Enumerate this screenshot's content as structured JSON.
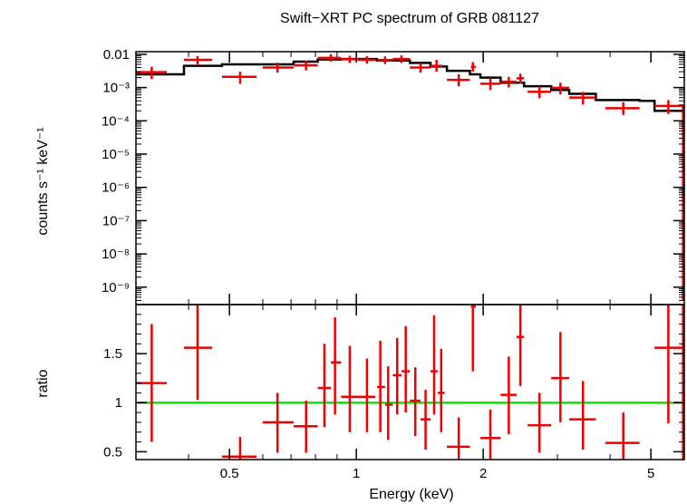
{
  "chart_data": [
    {
      "type": "scatter",
      "title": "Swift−XRT PC spectrum of GRB 081127",
      "ylabel": "counts s⁻¹ keV⁻¹",
      "y_scale": "log",
      "x_scale": "log",
      "xlim": [
        0.3,
        6.0
      ],
      "ylim": [
        3e-10,
        0.012
      ],
      "y_tick_labels": [
        "0.01",
        "10⁻³",
        "10⁻⁴",
        "10⁻⁵",
        "10⁻⁶",
        "10⁻⁷",
        "10⁻⁸",
        "10⁻⁹"
      ],
      "data_color": "#ee0000",
      "model_color": "#000000",
      "series": [
        {
          "role": "data",
          "points": [
            {
              "x": 0.327,
              "xlo": 0.3,
              "xhi": 0.355,
              "y": 0.0029,
              "ylo": 0.0018,
              "yhi": 0.0042
            },
            {
              "x": 0.42,
              "xlo": 0.39,
              "xhi": 0.455,
              "y": 0.0068,
              "ylo": 0.005,
              "yhi": 0.0088
            },
            {
              "x": 0.53,
              "xlo": 0.48,
              "xhi": 0.58,
              "y": 0.0021,
              "ylo": 0.0013,
              "yhi": 0.003
            },
            {
              "x": 0.65,
              "xlo": 0.6,
              "xhi": 0.71,
              "y": 0.004,
              "ylo": 0.0028,
              "yhi": 0.0056
            },
            {
              "x": 0.76,
              "xlo": 0.71,
              "xhi": 0.81,
              "y": 0.0047,
              "ylo": 0.0033,
              "yhi": 0.0064
            },
            {
              "x": 0.87,
              "xlo": 0.81,
              "xhi": 0.92,
              "y": 0.0078,
              "ylo": 0.006,
              "yhi": 0.01
            },
            {
              "x": 0.965,
              "xlo": 0.92,
              "xhi": 1.01,
              "y": 0.0071,
              "ylo": 0.0055,
              "yhi": 0.009
            },
            {
              "x": 1.06,
              "xlo": 1.01,
              "xhi": 1.11,
              "y": 0.0068,
              "ylo": 0.0052,
              "yhi": 0.0088
            },
            {
              "x": 1.17,
              "xlo": 1.12,
              "xhi": 1.22,
              "y": 0.0067,
              "ylo": 0.0051,
              "yhi": 0.0087
            },
            {
              "x": 1.28,
              "xlo": 1.22,
              "xhi": 1.34,
              "y": 0.0072,
              "ylo": 0.0055,
              "yhi": 0.0093
            },
            {
              "x": 1.42,
              "xlo": 1.34,
              "xhi": 1.5,
              "y": 0.004,
              "ylo": 0.0028,
              "yhi": 0.0055
            },
            {
              "x": 1.55,
              "xlo": 1.5,
              "xhi": 1.6,
              "y": 0.0045,
              "ylo": 0.003,
              "yhi": 0.0068
            },
            {
              "x": 1.75,
              "xlo": 1.64,
              "xhi": 1.86,
              "y": 0.0017,
              "ylo": 0.0011,
              "yhi": 0.0025
            },
            {
              "x": 1.89,
              "xlo": 1.87,
              "xhi": 1.92,
              "y": 0.0042,
              "ylo": 0.003,
              "yhi": 0.0058
            },
            {
              "x": 2.08,
              "xlo": 1.97,
              "xhi": 2.2,
              "y": 0.0013,
              "ylo": 0.00085,
              "yhi": 0.0019
            },
            {
              "x": 2.3,
              "xlo": 2.2,
              "xhi": 2.4,
              "y": 0.0015,
              "ylo": 0.001,
              "yhi": 0.0021
            },
            {
              "x": 2.45,
              "xlo": 2.4,
              "xhi": 2.5,
              "y": 0.0019,
              "ylo": 0.0013,
              "yhi": 0.0026
            },
            {
              "x": 2.72,
              "xlo": 2.55,
              "xhi": 2.9,
              "y": 0.00075,
              "ylo": 0.00048,
              "yhi": 0.0011
            },
            {
              "x": 3.05,
              "xlo": 2.9,
              "xhi": 3.2,
              "y": 0.00098,
              "ylo": 0.00062,
              "yhi": 0.0014
            },
            {
              "x": 3.45,
              "xlo": 3.2,
              "xhi": 3.7,
              "y": 0.0005,
              "ylo": 0.00031,
              "yhi": 0.00074
            },
            {
              "x": 4.3,
              "xlo": 3.9,
              "xhi": 4.7,
              "y": 0.00024,
              "ylo": 0.00015,
              "yhi": 0.00036
            },
            {
              "x": 5.5,
              "xlo": 5.1,
              "xhi": 5.95,
              "y": 0.00028,
              "ylo": 0.00016,
              "yhi": 0.00042
            },
            {
              "x": 5.96,
              "xlo": 5.92,
              "xhi": 6.0,
              "y": 0.00018,
              "ylo": 4e-10,
              "yhi": 0.0003
            }
          ]
        },
        {
          "role": "model",
          "steps": [
            {
              "x0": 0.3,
              "x1": 0.39,
              "y": 0.0025
            },
            {
              "x0": 0.39,
              "x1": 0.48,
              "y": 0.0045
            },
            {
              "x0": 0.48,
              "x1": 0.6,
              "y": 0.005
            },
            {
              "x0": 0.6,
              "x1": 0.71,
              "y": 0.005
            },
            {
              "x0": 0.71,
              "x1": 0.81,
              "y": 0.006
            },
            {
              "x0": 0.81,
              "x1": 0.92,
              "y": 0.007
            },
            {
              "x0": 0.92,
              "x1": 1.12,
              "y": 0.0072
            },
            {
              "x0": 1.12,
              "x1": 1.34,
              "y": 0.0065
            },
            {
              "x0": 1.34,
              "x1": 1.5,
              "y": 0.0055
            },
            {
              "x0": 1.5,
              "x1": 1.64,
              "y": 0.0043
            },
            {
              "x0": 1.64,
              "x1": 1.86,
              "y": 0.0032
            },
            {
              "x0": 1.86,
              "x1": 1.97,
              "y": 0.0025
            },
            {
              "x0": 1.97,
              "x1": 2.2,
              "y": 0.002
            },
            {
              "x0": 2.2,
              "x1": 2.5,
              "y": 0.0014
            },
            {
              "x0": 2.5,
              "x1": 2.9,
              "y": 0.0011
            },
            {
              "x0": 2.9,
              "x1": 3.2,
              "y": 0.00085
            },
            {
              "x0": 3.2,
              "x1": 3.7,
              "y": 0.00065
            },
            {
              "x0": 3.7,
              "x1": 4.7,
              "y": 0.00042
            },
            {
              "x0": 4.7,
              "x1": 5.1,
              "y": 0.0004
            },
            {
              "x0": 5.1,
              "x1": 6.0,
              "y": 0.0002
            }
          ]
        }
      ]
    },
    {
      "type": "scatter",
      "xlabel": "Energy (keV)",
      "ylabel": "ratio",
      "x_scale": "log",
      "xlim": [
        0.3,
        6.0
      ],
      "ylim": [
        0.42,
        2.0
      ],
      "x_tick_labels": [
        "0.5",
        "1",
        "2",
        "5"
      ],
      "y_tick_labels": [
        "0.5",
        "1",
        "1.5"
      ],
      "data_color": "#ee0000",
      "reference_line": {
        "y": 1,
        "color": "#00ee00"
      },
      "series": [
        {
          "role": "data",
          "points": [
            {
              "x": 0.327,
              "xlo": 0.3,
              "xhi": 0.355,
              "y": 1.2,
              "ylo": 0.6,
              "yhi": 1.8
            },
            {
              "x": 0.42,
              "xlo": 0.39,
              "xhi": 0.455,
              "y": 1.56,
              "ylo": 1.03,
              "yhi": 2.0
            },
            {
              "x": 0.53,
              "xlo": 0.48,
              "xhi": 0.58,
              "y": 0.45,
              "ylo": 0.42,
              "yhi": 0.65
            },
            {
              "x": 0.65,
              "xlo": 0.6,
              "xhi": 0.71,
              "y": 0.8,
              "ylo": 0.49,
              "yhi": 1.1
            },
            {
              "x": 0.76,
              "xlo": 0.71,
              "xhi": 0.81,
              "y": 0.76,
              "ylo": 0.49,
              "yhi": 1.02
            },
            {
              "x": 0.84,
              "xlo": 0.81,
              "xhi": 0.87,
              "y": 1.15,
              "ylo": 0.75,
              "yhi": 1.6
            },
            {
              "x": 0.89,
              "xlo": 0.87,
              "xhi": 0.92,
              "y": 1.41,
              "ylo": 0.88,
              "yhi": 1.87
            },
            {
              "x": 0.965,
              "xlo": 0.92,
              "xhi": 1.01,
              "y": 1.06,
              "ylo": 0.7,
              "yhi": 1.58
            },
            {
              "x": 1.06,
              "xlo": 1.01,
              "xhi": 1.11,
              "y": 1.06,
              "ylo": 0.7,
              "yhi": 1.45
            },
            {
              "x": 1.14,
              "xlo": 1.12,
              "xhi": 1.17,
              "y": 1.16,
              "ylo": 0.7,
              "yhi": 1.63
            },
            {
              "x": 1.19,
              "xlo": 1.17,
              "xhi": 1.22,
              "y": 0.98,
              "ylo": 0.62,
              "yhi": 1.37
            },
            {
              "x": 1.25,
              "xlo": 1.22,
              "xhi": 1.28,
              "y": 1.28,
              "ylo": 0.88,
              "yhi": 1.66
            },
            {
              "x": 1.31,
              "xlo": 1.28,
              "xhi": 1.34,
              "y": 1.32,
              "ylo": 0.9,
              "yhi": 1.78
            },
            {
              "x": 1.38,
              "xlo": 1.34,
              "xhi": 1.42,
              "y": 1.02,
              "ylo": 0.66,
              "yhi": 1.36
            },
            {
              "x": 1.46,
              "xlo": 1.42,
              "xhi": 1.5,
              "y": 0.83,
              "ylo": 0.52,
              "yhi": 1.13
            },
            {
              "x": 1.53,
              "xlo": 1.5,
              "xhi": 1.56,
              "y": 1.32,
              "ylo": 0.88,
              "yhi": 1.89
            },
            {
              "x": 1.59,
              "xlo": 1.56,
              "xhi": 1.62,
              "y": 1.1,
              "ylo": 0.7,
              "yhi": 1.55
            },
            {
              "x": 1.75,
              "xlo": 1.64,
              "xhi": 1.86,
              "y": 0.55,
              "ylo": 0.42,
              "yhi": 0.85
            },
            {
              "x": 1.89,
              "xlo": 1.87,
              "xhi": 1.92,
              "y": 1.98,
              "ylo": 1.32,
              "yhi": 2.0
            },
            {
              "x": 2.08,
              "xlo": 1.97,
              "xhi": 2.2,
              "y": 0.64,
              "ylo": 0.42,
              "yhi": 0.93
            },
            {
              "x": 2.3,
              "xlo": 2.2,
              "xhi": 2.4,
              "y": 1.08,
              "ylo": 0.68,
              "yhi": 1.47
            },
            {
              "x": 2.45,
              "xlo": 2.4,
              "xhi": 2.5,
              "y": 1.67,
              "ylo": 1.17,
              "yhi": 2.0
            },
            {
              "x": 2.72,
              "xlo": 2.55,
              "xhi": 2.9,
              "y": 0.77,
              "ylo": 0.49,
              "yhi": 1.1
            },
            {
              "x": 3.05,
              "xlo": 2.9,
              "xhi": 3.2,
              "y": 1.25,
              "ylo": 0.8,
              "yhi": 1.72
            },
            {
              "x": 3.45,
              "xlo": 3.2,
              "xhi": 3.7,
              "y": 0.83,
              "ylo": 0.52,
              "yhi": 1.22
            },
            {
              "x": 4.3,
              "xlo": 3.9,
              "xhi": 4.7,
              "y": 0.59,
              "ylo": 0.42,
              "yhi": 0.9
            },
            {
              "x": 5.5,
              "xlo": 5.1,
              "xhi": 5.95,
              "y": 1.56,
              "ylo": 0.79,
              "yhi": 2.0
            },
            {
              "x": 5.96,
              "xlo": 5.92,
              "xhi": 6.0,
              "y": 1.58,
              "ylo": 0.42,
              "yhi": 2.0
            }
          ]
        }
      ]
    }
  ]
}
